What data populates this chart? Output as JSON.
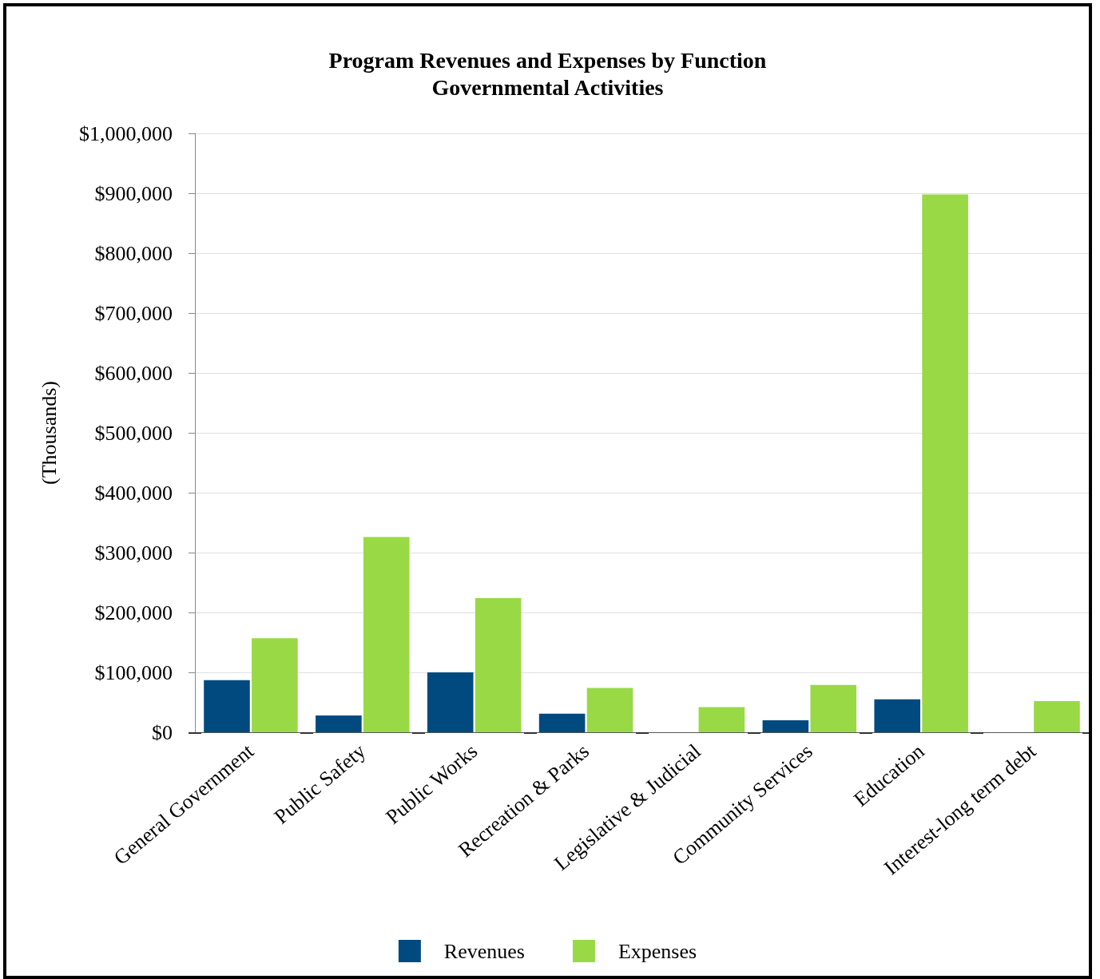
{
  "chart_data": {
    "type": "bar",
    "title": "Program Revenues and Expenses by Function",
    "subtitle": "Governmental Activities",
    "ylabel": "(Thousands)",
    "categories": [
      "General Government",
      "Public Safety",
      "Public Works",
      "Recreation & Parks",
      "Legislative & Judicial",
      "Community Services",
      "Education",
      "Interest-long term debt"
    ],
    "series": [
      {
        "name": "Revenues",
        "color": "#004a80",
        "values": [
          87000,
          28000,
          100000,
          31000,
          0,
          20000,
          55000,
          0
        ]
      },
      {
        "name": "Expenses",
        "color": "#99d945",
        "values": [
          157000,
          326000,
          224000,
          74000,
          42000,
          79000,
          898000,
          52000
        ]
      }
    ],
    "ylim": [
      0,
      1000000
    ],
    "yticks": [
      {
        "value": 0,
        "label": "$0"
      },
      {
        "value": 100000,
        "label": "$100,000"
      },
      {
        "value": 200000,
        "label": "$200,000"
      },
      {
        "value": 300000,
        "label": "$300,000"
      },
      {
        "value": 400000,
        "label": "$400,000"
      },
      {
        "value": 500000,
        "label": "$500,000"
      },
      {
        "value": 600000,
        "label": "$600,000"
      },
      {
        "value": 700000,
        "label": "$700,000"
      },
      {
        "value": 800000,
        "label": "$800,000"
      },
      {
        "value": 900000,
        "label": "$900,000"
      },
      {
        "value": 1000000,
        "label": "$1,000,000"
      }
    ],
    "grid": "y",
    "legend": "bottom"
  }
}
